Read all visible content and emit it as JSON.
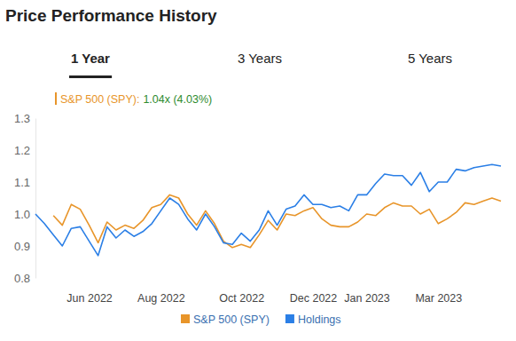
{
  "chart_data": {
    "type": "line",
    "title": "Price Performance History",
    "tabs": [
      "1 Year",
      "3 Years",
      "5 Years"
    ],
    "annotations": [
      "S&P 500 (SPY):",
      "1.04x (4.03%)"
    ],
    "categories": [
      null,
      null,
      null,
      null,
      null,
      null,
      "Jun 2022",
      null,
      null,
      null,
      null,
      null,
      null,
      null,
      "Aug 2022",
      null,
      null,
      null,
      null,
      null,
      null,
      null,
      null,
      "Oct 2022",
      null,
      null,
      null,
      null,
      null,
      null,
      null,
      "Dec 2022",
      null,
      null,
      null,
      null,
      null,
      "Jan 2023",
      null,
      null,
      null,
      null,
      null,
      null,
      null,
      "Mar 2023",
      null,
      null,
      null,
      null,
      null,
      null,
      null
    ],
    "series": [
      {
        "name": "S&P 500 (SPY)",
        "color": "#e8952a",
        "values": [
          null,
          null,
          0.995,
          0.965,
          1.03,
          1.015,
          0.965,
          0.91,
          0.975,
          0.95,
          0.965,
          0.955,
          0.98,
          1.02,
          1.03,
          1.06,
          1.05,
          1.0,
          0.965,
          1.01,
          0.97,
          0.915,
          0.895,
          0.905,
          0.895,
          0.935,
          0.98,
          0.95,
          1.0,
          0.995,
          1.01,
          1.02,
          0.985,
          0.965,
          0.96,
          0.96,
          0.975,
          1.0,
          0.995,
          1.02,
          1.035,
          1.025,
          1.025,
          1.0,
          1.015,
          0.97,
          0.985,
          1.005,
          1.035,
          1.03,
          1.04,
          1.05,
          1.04
        ]
      },
      {
        "name": "Holdings",
        "color": "#2b7fe6",
        "values": [
          1.0,
          0.97,
          0.935,
          0.9,
          0.955,
          0.96,
          0.915,
          0.87,
          0.96,
          0.925,
          0.95,
          0.93,
          0.945,
          0.97,
          1.01,
          1.05,
          1.03,
          0.985,
          0.95,
          1.0,
          0.96,
          0.91,
          0.905,
          0.94,
          0.915,
          0.95,
          1.01,
          0.965,
          1.015,
          1.025,
          1.06,
          1.03,
          1.03,
          1.02,
          1.025,
          1.01,
          1.06,
          1.06,
          1.095,
          1.125,
          1.12,
          1.12,
          1.09,
          1.13,
          1.07,
          1.1,
          1.1,
          1.14,
          1.135,
          1.145,
          1.15,
          1.155,
          1.15
        ]
      }
    ],
    "ylim": [
      0.8,
      1.3
    ],
    "yticks": [
      0.8,
      0.9,
      {
        "value": 1,
        "label": "1.0"
      },
      1.1,
      1.2,
      1.3
    ],
    "grid": false,
    "legend": "bottom"
  }
}
